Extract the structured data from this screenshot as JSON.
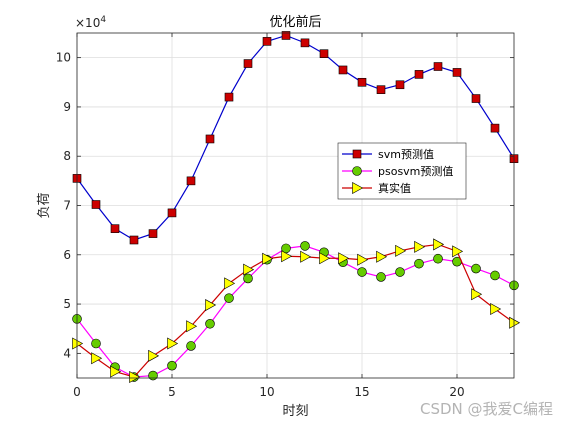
{
  "chart_data": {
    "type": "line",
    "title": "优化前后",
    "xlabel": "时刻",
    "ylabel": "负荷",
    "y_exponent_label": "× 10^4",
    "xlim": [
      0,
      23
    ],
    "ylim": [
      3.5,
      10.5
    ],
    "x_ticks": [
      0,
      5,
      10,
      15,
      20
    ],
    "y_ticks": [
      4,
      5,
      6,
      7,
      8,
      9,
      10
    ],
    "grid": true,
    "legend_position": "right",
    "x": [
      0,
      1,
      2,
      3,
      4,
      5,
      6,
      7,
      8,
      9,
      10,
      11,
      12,
      13,
      14,
      15,
      16,
      17,
      18,
      19,
      20,
      21,
      22,
      23
    ],
    "series": [
      {
        "name": "svm预测值",
        "line_color": "#0000cc",
        "marker": "square",
        "marker_color": "#cc0000",
        "values": [
          7.55,
          7.02,
          6.53,
          6.3,
          6.43,
          6.85,
          7.5,
          8.35,
          9.2,
          9.88,
          10.33,
          10.45,
          10.3,
          10.08,
          9.75,
          9.5,
          9.35,
          9.45,
          9.66,
          9.82,
          9.7,
          9.17,
          8.57,
          7.95
        ]
      },
      {
        "name": "psosvm预测值",
        "line_color": "#ff00ff",
        "marker": "circle",
        "marker_color": "#66cc00",
        "values": [
          4.7,
          4.2,
          3.72,
          3.52,
          3.55,
          3.75,
          4.15,
          4.6,
          5.12,
          5.52,
          5.9,
          6.13,
          6.18,
          6.05,
          5.85,
          5.65,
          5.55,
          5.65,
          5.82,
          5.92,
          5.86,
          5.72,
          5.58,
          5.38
        ]
      },
      {
        "name": "真实值",
        "line_color": "#cc0000",
        "marker": "triangle-right",
        "marker_color": "#ffff00",
        "values": [
          4.2,
          3.9,
          3.63,
          3.52,
          3.95,
          4.2,
          4.55,
          4.98,
          5.42,
          5.7,
          5.92,
          5.97,
          5.96,
          5.93,
          5.93,
          5.9,
          5.96,
          6.08,
          6.16,
          6.21,
          6.07,
          5.2,
          4.9,
          4.62
        ]
      }
    ]
  },
  "watermark": "CSDN @我爱C编程"
}
